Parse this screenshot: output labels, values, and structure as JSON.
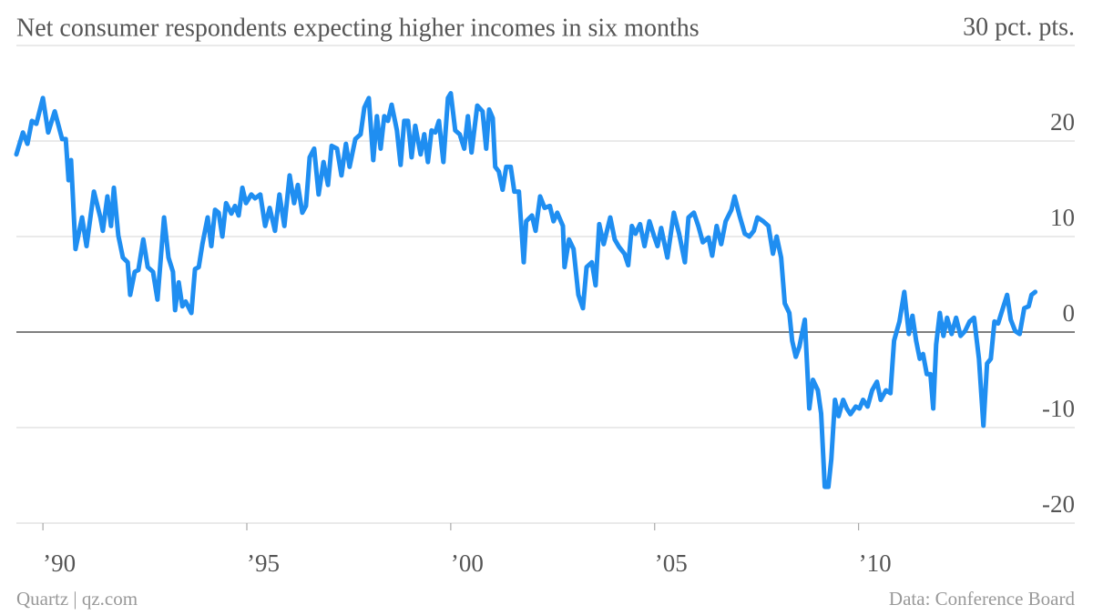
{
  "chart_data": {
    "type": "line",
    "title": "Net consumer respondents expecting higher incomes in six months",
    "credit": "Quartz | qz.com",
    "source": "Data: Conference Board",
    "xlim": [
      1989.35,
      2015.3
    ],
    "xticks": [
      {
        "value": 1990,
        "label": "’90"
      },
      {
        "value": 1995,
        "label": "’95"
      },
      {
        "value": 2000,
        "label": "’00"
      },
      {
        "value": 2005,
        "label": "’05"
      },
      {
        "value": 2010,
        "label": "’10"
      }
    ],
    "ylim": [
      -20,
      30
    ],
    "yticks": [
      -20,
      -10,
      0,
      10,
      20,
      {
        "value": 30,
        "label": "30 pct. pts."
      }
    ],
    "grid": true,
    "x": [
      1989.35,
      1989.51,
      1989.62,
      1989.73,
      1989.84,
      1990.0,
      1990.13,
      1990.29,
      1990.47,
      1990.56,
      1990.63,
      1990.69,
      1990.8,
      1990.96,
      1991.07,
      1991.25,
      1991.41,
      1991.47,
      1991.58,
      1991.67,
      1991.74,
      1991.85,
      1991.96,
      1992.08,
      1992.14,
      1992.25,
      1992.34,
      1992.46,
      1992.57,
      1992.7,
      1992.81,
      1992.97,
      1993.08,
      1993.19,
      1993.24,
      1993.33,
      1993.42,
      1993.5,
      1993.64,
      1993.73,
      1993.82,
      1993.91,
      1994.04,
      1994.13,
      1994.22,
      1994.31,
      1994.4,
      1994.49,
      1994.62,
      1994.71,
      1994.8,
      1994.89,
      1994.98,
      1995.11,
      1995.2,
      1995.33,
      1995.45,
      1995.56,
      1995.69,
      1995.8,
      1995.92,
      1996.05,
      1996.16,
      1996.25,
      1996.36,
      1996.45,
      1996.54,
      1996.65,
      1996.76,
      1996.88,
      1996.99,
      1997.08,
      1997.21,
      1997.32,
      1997.43,
      1997.52,
      1997.66,
      1997.79,
      1997.88,
      1997.99,
      1998.1,
      1998.19,
      1998.28,
      1998.37,
      1998.46,
      1998.55,
      1998.68,
      1998.77,
      1998.86,
      1998.95,
      1999.04,
      1999.13,
      1999.26,
      1999.35,
      1999.44,
      1999.53,
      1999.62,
      1999.71,
      1999.82,
      1999.93,
      2000.0,
      2000.11,
      2000.22,
      2000.33,
      2000.42,
      2000.51,
      2000.65,
      2000.78,
      2000.87,
      2000.94,
      2001.03,
      2001.09,
      2001.18,
      2001.27,
      2001.36,
      2001.47,
      2001.56,
      2001.67,
      2001.79,
      2001.85,
      2001.99,
      2002.08,
      2002.19,
      2002.3,
      2002.43,
      2002.52,
      2002.61,
      2002.75,
      2002.79,
      2002.9,
      2003.01,
      2003.13,
      2003.24,
      2003.33,
      2003.46,
      2003.55,
      2003.64,
      2003.75,
      2003.91,
      2004.02,
      2004.13,
      2004.26,
      2004.35,
      2004.44,
      2004.53,
      2004.64,
      2004.75,
      2004.87,
      2004.98,
      2005.07,
      2005.16,
      2005.31,
      2005.47,
      2005.6,
      2005.74,
      2005.83,
      2005.96,
      2006.07,
      2006.18,
      2006.32,
      2006.41,
      2006.52,
      2006.63,
      2006.74,
      2006.88,
      2006.96,
      2007.08,
      2007.21,
      2007.32,
      2007.43,
      2007.52,
      2007.66,
      2007.79,
      2007.9,
      2007.99,
      2008.1,
      2008.19,
      2008.3,
      2008.37,
      2008.46,
      2008.55,
      2008.68,
      2008.79,
      2008.88,
      2009.0,
      2009.08,
      2009.17,
      2009.26,
      2009.33,
      2009.42,
      2009.51,
      2009.62,
      2009.71,
      2009.8,
      2009.93,
      2010.02,
      2010.11,
      2010.22,
      2010.33,
      2010.45,
      2010.54,
      2010.67,
      2010.78,
      2010.87,
      2011.0,
      2011.12,
      2011.23,
      2011.32,
      2011.41,
      2011.5,
      2011.58,
      2011.67,
      2011.76,
      2011.83,
      2011.9,
      2011.99,
      2012.08,
      2012.17,
      2012.28,
      2012.39,
      2012.5,
      2012.61,
      2012.72,
      2012.83,
      2012.95,
      2013.06,
      2013.15,
      2013.24,
      2013.33,
      2013.42,
      2013.5,
      2013.64,
      2013.73,
      2013.84,
      2013.95,
      2014.06,
      2014.17,
      2014.24,
      2014.33
    ],
    "series": [
      {
        "color": "#1f8ef1",
        "values": [
          18.6,
          20.9,
          19.7,
          22.1,
          21.8,
          24.5,
          20.9,
          23.1,
          20.2,
          20.2,
          15.9,
          18.0,
          8.7,
          12.0,
          9.0,
          14.7,
          12.0,
          10.6,
          14.2,
          11.1,
          15.1,
          10.1,
          7.8,
          7.3,
          3.9,
          6.3,
          6.5,
          9.7,
          6.8,
          6.3,
          3.4,
          12.0,
          7.8,
          6.3,
          2.3,
          5.2,
          2.7,
          3.2,
          2.0,
          6.6,
          6.8,
          9.2,
          12.0,
          9.0,
          12.8,
          12.5,
          10.0,
          13.5,
          12.4,
          13.2,
          12.2,
          15.1,
          13.5,
          14.4,
          14.0,
          14.4,
          11.1,
          13.0,
          10.6,
          14.4,
          11.1,
          16.4,
          13.5,
          15.4,
          12.5,
          13.2,
          18.3,
          19.2,
          14.4,
          17.8,
          15.4,
          19.5,
          19.2,
          16.4,
          19.7,
          17.3,
          20.2,
          20.7,
          23.5,
          24.5,
          18.0,
          22.6,
          19.2,
          22.6,
          22.1,
          23.8,
          21.1,
          17.5,
          22.1,
          22.1,
          18.3,
          21.6,
          18.6,
          20.7,
          17.8,
          21.1,
          20.9,
          22.1,
          17.8,
          24.5,
          25.0,
          21.1,
          20.7,
          19.2,
          22.6,
          18.8,
          23.7,
          23.1,
          19.2,
          23.3,
          22.4,
          17.3,
          16.8,
          14.9,
          17.3,
          17.3,
          14.7,
          14.7,
          7.3,
          11.6,
          12.2,
          10.6,
          14.2,
          13.0,
          13.2,
          11.6,
          12.5,
          11.1,
          6.8,
          9.7,
          8.7,
          3.9,
          2.5,
          6.8,
          7.3,
          4.9,
          11.3,
          9.2,
          12.0,
          9.7,
          8.9,
          8.2,
          7.0,
          11.1,
          10.3,
          11.3,
          9.0,
          11.6,
          10.1,
          9.0,
          10.9,
          7.8,
          12.5,
          10.3,
          7.3,
          12.0,
          12.5,
          11.1,
          9.4,
          9.9,
          8.0,
          11.1,
          9.2,
          11.6,
          12.8,
          14.2,
          12.2,
          10.3,
          10.0,
          10.6,
          12.0,
          11.6,
          11.1,
          8.2,
          10.0,
          7.8,
          3.0,
          2.0,
          -0.9,
          -2.6,
          -1.5,
          1.3,
          -8.0,
          -5.0,
          -6.1,
          -8.5,
          -16.2,
          -16.2,
          -13.3,
          -7.1,
          -8.8,
          -7.1,
          -8.0,
          -8.6,
          -7.8,
          -8.0,
          -7.1,
          -7.8,
          -6.1,
          -5.2,
          -7.1,
          -6.1,
          -6.4,
          -0.9,
          1.1,
          4.2,
          -0.2,
          1.7,
          -0.9,
          -2.8,
          -2.3,
          -4.4,
          -4.4,
          -8.0,
          -1.3,
          2.0,
          -0.4,
          1.5,
          -0.2,
          1.5,
          -0.4,
          0.1,
          1.1,
          1.5,
          -2.8,
          -9.8,
          -3.3,
          -2.8,
          1.1,
          0.9,
          2.0,
          3.9,
          1.3,
          0.1,
          -0.2,
          2.5,
          2.7,
          3.9,
          4.2
        ]
      }
    ]
  }
}
